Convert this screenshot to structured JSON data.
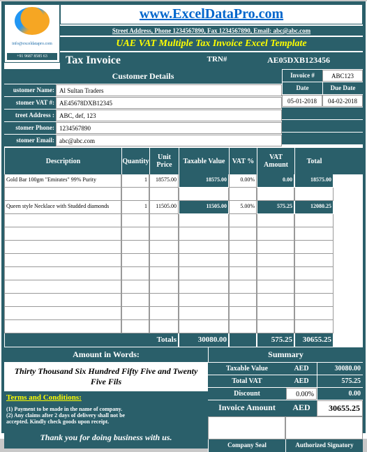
{
  "header": {
    "site_url": "www.ExcelDataPro.com",
    "address": "Street Address, Phone 1234567890, Fax 1234567890, Email: abc@abc.com",
    "template_title": "UAE VAT Multiple Tax Invoice Excel Template",
    "invoice_title": "Tax Invoice",
    "trn_label": "TRN#",
    "trn_value": "AE05DXB123456",
    "logo_info": "info@exceldatapro.com",
    "logo_phone": "+91 9687 8585 63"
  },
  "customer": {
    "section": "Customer Details",
    "labels": {
      "name": "ustomer Name:",
      "vat": "stomer VAT #:",
      "addr": "treet Address :",
      "phone": "stomer Phone:",
      "email": "stomer Email:"
    },
    "name": "Al Sultan Traders",
    "vat": "AE45678DXB12345",
    "address": "ABC, def, 123",
    "phone": "1234567890",
    "email": "abc@abc.com"
  },
  "invoice": {
    "inv_label": "Invoice #",
    "inv_no": "ABC123",
    "date_label": "Date",
    "due_label": "Due Date",
    "date": "05-01-2018",
    "due": "04-02-2018"
  },
  "cols": {
    "desc": "Description",
    "qty": "Quantity",
    "up": "Unit Price",
    "tax": "Taxable Value",
    "vatp": "VAT %",
    "vata": "VAT Amount",
    "tot": "Total"
  },
  "rows": [
    {
      "desc": "Gold Bar 100gm \"Emirates\" 99% Purity",
      "qty": "1",
      "up": "18575.00",
      "tax": "18575.00",
      "vatp": "0.00%",
      "vata": "0.00",
      "tot": "18575.00"
    },
    {
      "desc": "",
      "qty": "",
      "up": "",
      "tax": "",
      "vatp": "",
      "vata": "",
      "tot": ""
    },
    {
      "desc": "Queen style Necklace with Studded diamonds",
      "qty": "1",
      "up": "11505.00",
      "tax": "11505.00",
      "vatp": "5.00%",
      "vata": "575.25",
      "tot": "12080.25"
    },
    {
      "desc": "",
      "qty": "",
      "up": "",
      "tax": "",
      "vatp": "",
      "vata": "",
      "tot": ""
    },
    {
      "desc": "",
      "qty": "",
      "up": "",
      "tax": "",
      "vatp": "",
      "vata": "",
      "tot": ""
    },
    {
      "desc": "",
      "qty": "",
      "up": "",
      "tax": "",
      "vatp": "",
      "vata": "",
      "tot": ""
    },
    {
      "desc": "",
      "qty": "",
      "up": "",
      "tax": "",
      "vatp": "",
      "vata": "",
      "tot": ""
    },
    {
      "desc": "",
      "qty": "",
      "up": "",
      "tax": "",
      "vatp": "",
      "vata": "",
      "tot": ""
    },
    {
      "desc": "",
      "qty": "",
      "up": "",
      "tax": "",
      "vatp": "",
      "vata": "",
      "tot": ""
    },
    {
      "desc": "",
      "qty": "",
      "up": "",
      "tax": "",
      "vatp": "",
      "vata": "",
      "tot": ""
    },
    {
      "desc": "",
      "qty": "",
      "up": "",
      "tax": "",
      "vatp": "",
      "vata": "",
      "tot": ""
    },
    {
      "desc": "",
      "qty": "",
      "up": "",
      "tax": "",
      "vatp": "",
      "vata": "",
      "tot": ""
    }
  ],
  "totals": {
    "label": "Totals",
    "tax": "30080.00",
    "vata": "575.25",
    "tot": "30655.25"
  },
  "words": {
    "label": "Amount in Words:",
    "value": "Thirty Thousand Six Hundred Fifty Five and Twenty Five Fils"
  },
  "summary": {
    "title": "Summary",
    "taxable_l": "Taxable Value",
    "taxable_c": "AED",
    "taxable_v": "30080.00",
    "vat_l": "Total VAT",
    "vat_c": "AED",
    "vat_v": "575.25",
    "disc_l": "Discount",
    "disc_p": "0.00%",
    "disc_v": "0.00",
    "inv_l": "Invoice Amount",
    "inv_c": "AED",
    "inv_v": "30655.25"
  },
  "terms": {
    "title": "Terms and Conditions:",
    "line1": "(1) Payment to be made in the name of company.",
    "line2": "(2) Any claims after 2 days of delivery shall not be",
    "line3": "accepted. Kindly check goods upon receipt."
  },
  "footer": {
    "thank": "Thank you for doing business with us.",
    "seal": "Company Seal",
    "sig": "Authorized Signatory"
  },
  "colors": {
    "teal": "#2a5f6a",
    "yellow": "#ffff00",
    "link": "#0066cc"
  }
}
